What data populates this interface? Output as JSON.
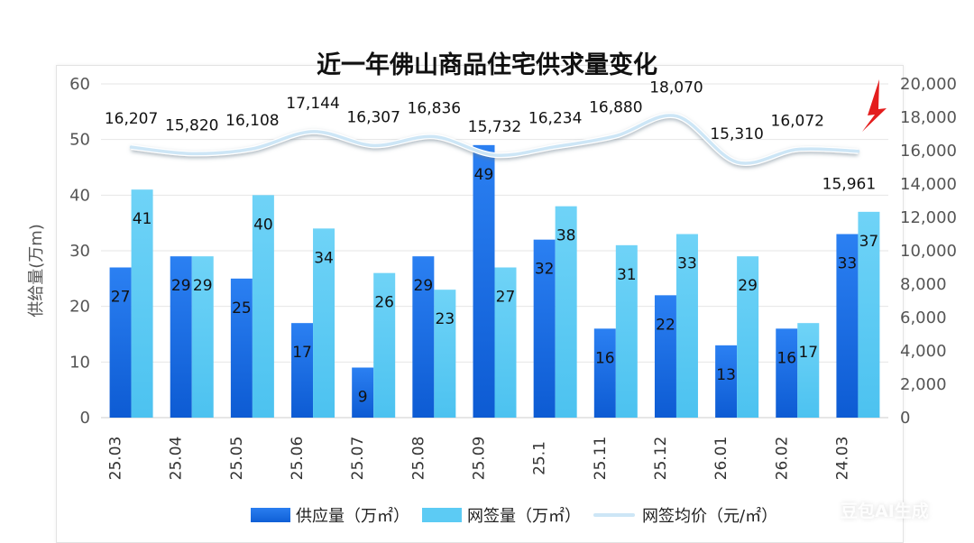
{
  "chart_data": {
    "type": "bar+line",
    "title": "近一年佛山商品住宅供求量变化",
    "ylabel": "供给量(万m)",
    "ylim": [
      0,
      60
    ],
    "y2lim": [
      0,
      20000
    ],
    "yticks": [
      "0",
      "10",
      "20",
      "30",
      "40",
      "50",
      "60"
    ],
    "y2ticks": [
      "0",
      "2,000",
      "4,000",
      "6,000",
      "8,000",
      "10,000",
      "12,000",
      "14,000",
      "16,000",
      "18,000",
      "20,000"
    ],
    "categories": [
      "25.03",
      "25.04",
      "25.05",
      "25.06",
      "25.07",
      "25.08",
      "25.09",
      "25.1",
      "25.11",
      "25.12",
      "26.01",
      "26.02",
      "24.03"
    ],
    "series": [
      {
        "name": "供应量（万㎡）",
        "type": "bar",
        "axis": "left",
        "color": "#1a6fe0",
        "values": [
          27,
          29,
          25,
          17,
          9,
          29,
          49,
          32,
          16,
          22,
          13,
          16,
          33
        ]
      },
      {
        "name": "网签量（万㎡）",
        "type": "bar",
        "axis": "left",
        "color": "#5ccbf4",
        "values": [
          41,
          29,
          40,
          34,
          26,
          23,
          27,
          38,
          31,
          33,
          29,
          17,
          37
        ]
      },
      {
        "name": "网签均价（元/㎡）",
        "type": "line",
        "axis": "right",
        "color": "#cde6f6",
        "values": [
          16207,
          15820,
          16108,
          17144,
          16307,
          16836,
          15732,
          16234,
          16880,
          18070,
          15310,
          16072,
          15961
        ],
        "labels": [
          "16,207",
          "15,820",
          "16,108",
          "17,144",
          "16,307",
          "16,836",
          "15,732",
          "16,234",
          "16,880",
          "18,070",
          "15,310",
          "16,072",
          "15,961"
        ]
      }
    ],
    "grid": true,
    "legend": "bottom",
    "annotation": "red-arrow-pointing-to-last-price"
  },
  "watermark": "豆包AI生成"
}
